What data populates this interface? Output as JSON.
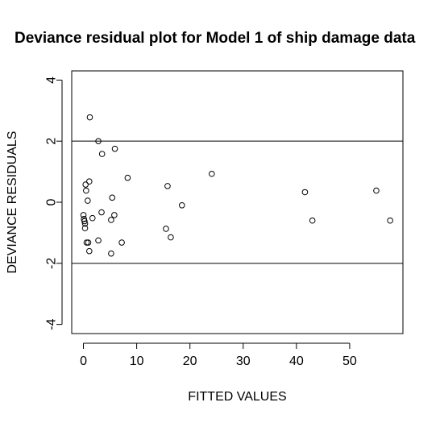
{
  "chart_data": {
    "type": "scatter",
    "title": "Deviance residual plot for Model 1 of ship damage data",
    "xlabel": "FITTED VALUES",
    "ylabel": "DEVIANCE RESIDUALS",
    "xlim": [
      -2.2,
      60
    ],
    "ylim": [
      -4.3,
      4.3
    ],
    "xticks": [
      0,
      10,
      20,
      30,
      40,
      50
    ],
    "yticks": [
      -4,
      -2,
      0,
      2,
      4
    ],
    "reference_lines": [
      2,
      -2
    ],
    "marker": "open-circle",
    "grid": false,
    "legend": "none",
    "points": [
      {
        "x": 1.2,
        "y": 2.78
      },
      {
        "x": 2.8,
        "y": 2.0
      },
      {
        "x": 3.5,
        "y": 1.58
      },
      {
        "x": 5.9,
        "y": 1.75
      },
      {
        "x": 8.3,
        "y": 0.8
      },
      {
        "x": 24.1,
        "y": 0.93
      },
      {
        "x": 15.8,
        "y": 0.53
      },
      {
        "x": 41.6,
        "y": 0.33
      },
      {
        "x": 55.0,
        "y": 0.38
      },
      {
        "x": 43.0,
        "y": -0.6
      },
      {
        "x": 57.6,
        "y": -0.6
      },
      {
        "x": 1.1,
        "y": 0.68
      },
      {
        "x": 0.4,
        "y": 0.58
      },
      {
        "x": 0.5,
        "y": 0.38
      },
      {
        "x": 0.8,
        "y": 0.05
      },
      {
        "x": 5.4,
        "y": 0.15
      },
      {
        "x": 18.5,
        "y": -0.1
      },
      {
        "x": 0.0,
        "y": -0.42
      },
      {
        "x": 0.1,
        "y": -0.55
      },
      {
        "x": 0.2,
        "y": -0.62
      },
      {
        "x": 0.3,
        "y": -0.7
      },
      {
        "x": 0.3,
        "y": -0.85
      },
      {
        "x": 1.7,
        "y": -0.52
      },
      {
        "x": 3.4,
        "y": -0.33
      },
      {
        "x": 5.2,
        "y": -0.58
      },
      {
        "x": 5.8,
        "y": -0.42
      },
      {
        "x": 15.5,
        "y": -0.87
      },
      {
        "x": 16.4,
        "y": -1.15
      },
      {
        "x": 2.8,
        "y": -1.25
      },
      {
        "x": 0.6,
        "y": -1.32
      },
      {
        "x": 0.9,
        "y": -1.32
      },
      {
        "x": 7.2,
        "y": -1.32
      },
      {
        "x": 1.1,
        "y": -1.6
      },
      {
        "x": 5.2,
        "y": -1.68
      }
    ]
  }
}
